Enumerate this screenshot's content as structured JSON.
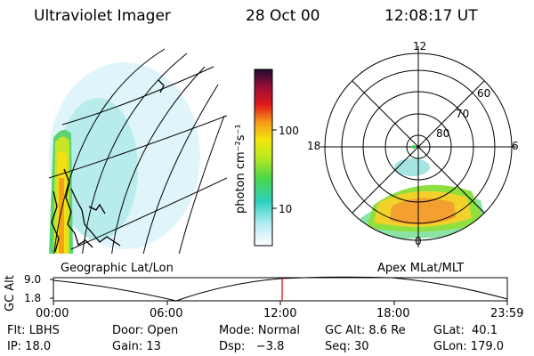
{
  "header": {
    "title": "Ultraviolet Imager",
    "date": "28 Oct 00",
    "time": "12:08:17 UT"
  },
  "colorbar": {
    "label": "photon cm⁻²s⁻¹",
    "ticks": [
      "100",
      "10"
    ]
  },
  "left_panel": {
    "caption": "Geographic Lat/Lon"
  },
  "right_panel": {
    "caption": "Apex MLat/MLT",
    "mlt_labels": [
      "12",
      "18",
      "6",
      "0"
    ],
    "lat_labels": [
      "60",
      "70",
      "80"
    ]
  },
  "alt_plot": {
    "ylabel": "GC Alt",
    "y_ticks": [
      "9.0",
      "1.8"
    ],
    "x_ticks": [
      "00:00",
      "06:00",
      "12:00",
      "18:00",
      "23:59"
    ],
    "current_marker_time": "12:08"
  },
  "info": {
    "flt": "Flt: LBHS",
    "ip": "IP: 18.0",
    "door": "Door: Open",
    "gain": "Gain: 13",
    "mode": "Mode: Normal",
    "dsp": "Dsp:   −3.8",
    "gcalt": "GC Alt: 8.6 Re",
    "seq": "Seq: 30",
    "glat": "GLat:  40.1",
    "glon": "GLon: 179.0"
  }
}
